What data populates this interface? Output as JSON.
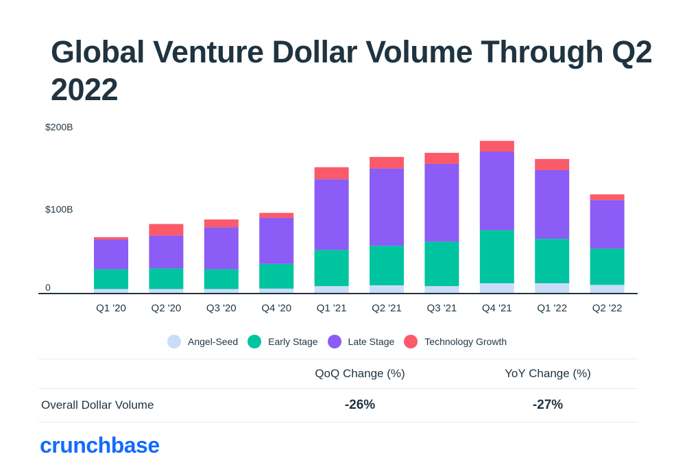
{
  "title": "Global Venture Dollar Volume Through Q2 2022",
  "chart_data": {
    "type": "bar",
    "stacked": true,
    "categories": [
      "Q1 '20",
      "Q2 '20",
      "Q3 '20",
      "Q4 '20",
      "Q1 '21",
      "Q2 '21",
      "Q3 '21",
      "Q4 '21",
      "Q1 '22",
      "Q2 '22"
    ],
    "series": [
      {
        "name": "Angel-Seed",
        "color": "#c9dcf9",
        "values": [
          5.5,
          5.5,
          5.5,
          6.0,
          9.0,
          10.0,
          9.0,
          12.5,
          12.5,
          10.5
        ]
      },
      {
        "name": "Early Stage",
        "color": "#00c4a0",
        "values": [
          24.0,
          25.0,
          24.0,
          30.0,
          44.0,
          48.0,
          54.0,
          64.5,
          54.0,
          44.0
        ]
      },
      {
        "name": "Late Stage",
        "color": "#8b5cf6",
        "values": [
          36.0,
          40.0,
          51.0,
          56.0,
          86.0,
          94.0,
          94.5,
          95.5,
          83.5,
          59.0
        ]
      },
      {
        "name": "Technology Growth",
        "color": "#fa5a6a",
        "values": [
          3.0,
          14.0,
          9.5,
          6.0,
          14.5,
          14.0,
          13.5,
          13.0,
          13.5,
          7.0
        ]
      }
    ],
    "y_ticks": [
      "$200B",
      "$100B",
      "0"
    ],
    "y_tick_values": [
      200,
      100,
      0
    ],
    "ylim": [
      0,
      200
    ],
    "legend_position": "bottom"
  },
  "table": {
    "headers": [
      "",
      "QoQ Change (%)",
      "YoY Change (%)"
    ],
    "rows": [
      {
        "label": "Overall Dollar Volume",
        "qoq": "-26%",
        "yoy": "-27%"
      }
    ]
  },
  "logo": "crunchbase",
  "colors": {
    "title": "#1f3340",
    "brand": "#146aff",
    "axis": "#1f3340",
    "rule": "#e7ebee"
  }
}
